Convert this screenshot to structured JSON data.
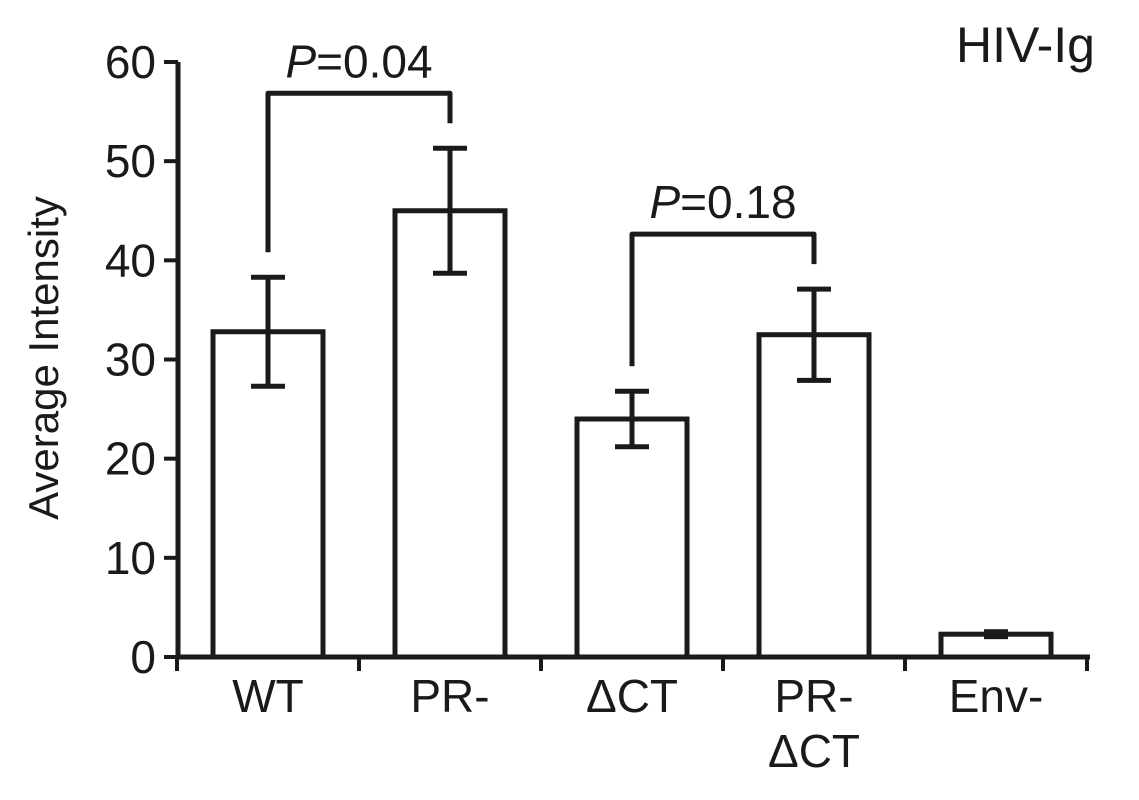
{
  "chart_data": {
    "type": "bar",
    "title": "HIV-Ig",
    "ylabel": "Average Intensity",
    "xlabel": "",
    "ylim": [
      0,
      60
    ],
    "yticks": [
      0,
      10,
      20,
      30,
      40,
      50,
      60
    ],
    "categories": [
      [
        "WT"
      ],
      [
        "PR-"
      ],
      [
        "ΔCT"
      ],
      [
        "PR-",
        "ΔCT"
      ],
      [
        "Env-"
      ]
    ],
    "values": [
      32.8,
      45.0,
      24.0,
      32.5,
      2.3
    ],
    "errors": [
      5.5,
      6.3,
      2.8,
      4.6,
      0.3
    ],
    "significance": [
      {
        "from": 0,
        "to": 1,
        "p_prefix": "P",
        "p_value": "=0.04"
      },
      {
        "from": 2,
        "to": 3,
        "p_prefix": "P",
        "p_value": "=0.18"
      }
    ],
    "bar_fill": "#ffffff",
    "stroke_color": "#1a1a1a",
    "grid": false,
    "legend": "none"
  }
}
